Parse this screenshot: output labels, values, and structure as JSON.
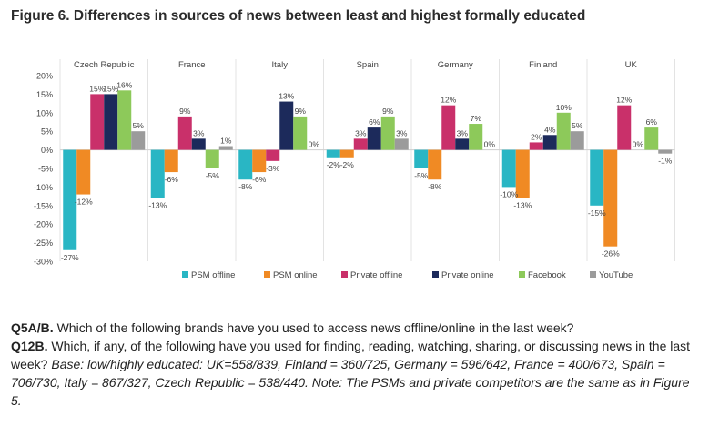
{
  "title": "Figure 6. Differences in sources of news between least and highest formally educated",
  "chart_data": {
    "type": "bar",
    "title": "Figure 6. Differences in sources of news between least and highest formally educated",
    "categories": [
      "Czech Republic",
      "France",
      "Italy",
      "Spain",
      "Germany",
      "Finland",
      "UK"
    ],
    "series": [
      {
        "name": "PSM offline",
        "color": "#29b6c4",
        "values": [
          -27,
          -13,
          -8,
          -2,
          -5,
          -10,
          -15
        ]
      },
      {
        "name": "PSM online",
        "color": "#f08a24",
        "values": [
          -12,
          -6,
          -6,
          -2,
          -8,
          -13,
          -26
        ]
      },
      {
        "name": "Private offline",
        "color": "#c9306a",
        "values": [
          15,
          9,
          -3,
          3,
          12,
          2,
          12
        ]
      },
      {
        "name": "Private online",
        "color": "#1c2a5b",
        "values": [
          15,
          3,
          13,
          6,
          3,
          4,
          0
        ]
      },
      {
        "name": "Facebook",
        "color": "#8dc95a",
        "values": [
          16,
          -5,
          9,
          9,
          7,
          10,
          6
        ]
      },
      {
        "name": "YouTube",
        "color": "#9b9b9b",
        "values": [
          5,
          1,
          0,
          3,
          0,
          5,
          -1
        ]
      }
    ],
    "ylim": [
      -30,
      20
    ],
    "yticks": [
      20,
      15,
      10,
      5,
      0,
      -5,
      -10,
      -15,
      -20,
      -25,
      -30
    ],
    "ytick_labels": [
      "20%",
      "15%",
      "10%",
      "5%",
      "0%",
      "-5%",
      "-10%",
      "-15%",
      "-20%",
      "-25%",
      "-30%"
    ],
    "value_suffix": "%",
    "xlabel": "",
    "ylabel": "",
    "legend_position": "bottom"
  },
  "notes": {
    "q1_label": "Q5A/B.",
    "q1_text": " Which of the following brands have you used to access news offline/online in the last week?",
    "q2_label": "Q12B.",
    "q2_text": " Which, if any, of the following have you used for finding, reading, watching, sharing, or discussing news in the last week? ",
    "base_text": "Base: low/highly educated: UK=558/839, Finland = 360/725, Germany = 596/642, France = 400/673, Spain = 706/730, Italy = 867/327, Czech Republic = 538/440. Note: The PSMs and private competitors are the same as in Figure 5."
  }
}
